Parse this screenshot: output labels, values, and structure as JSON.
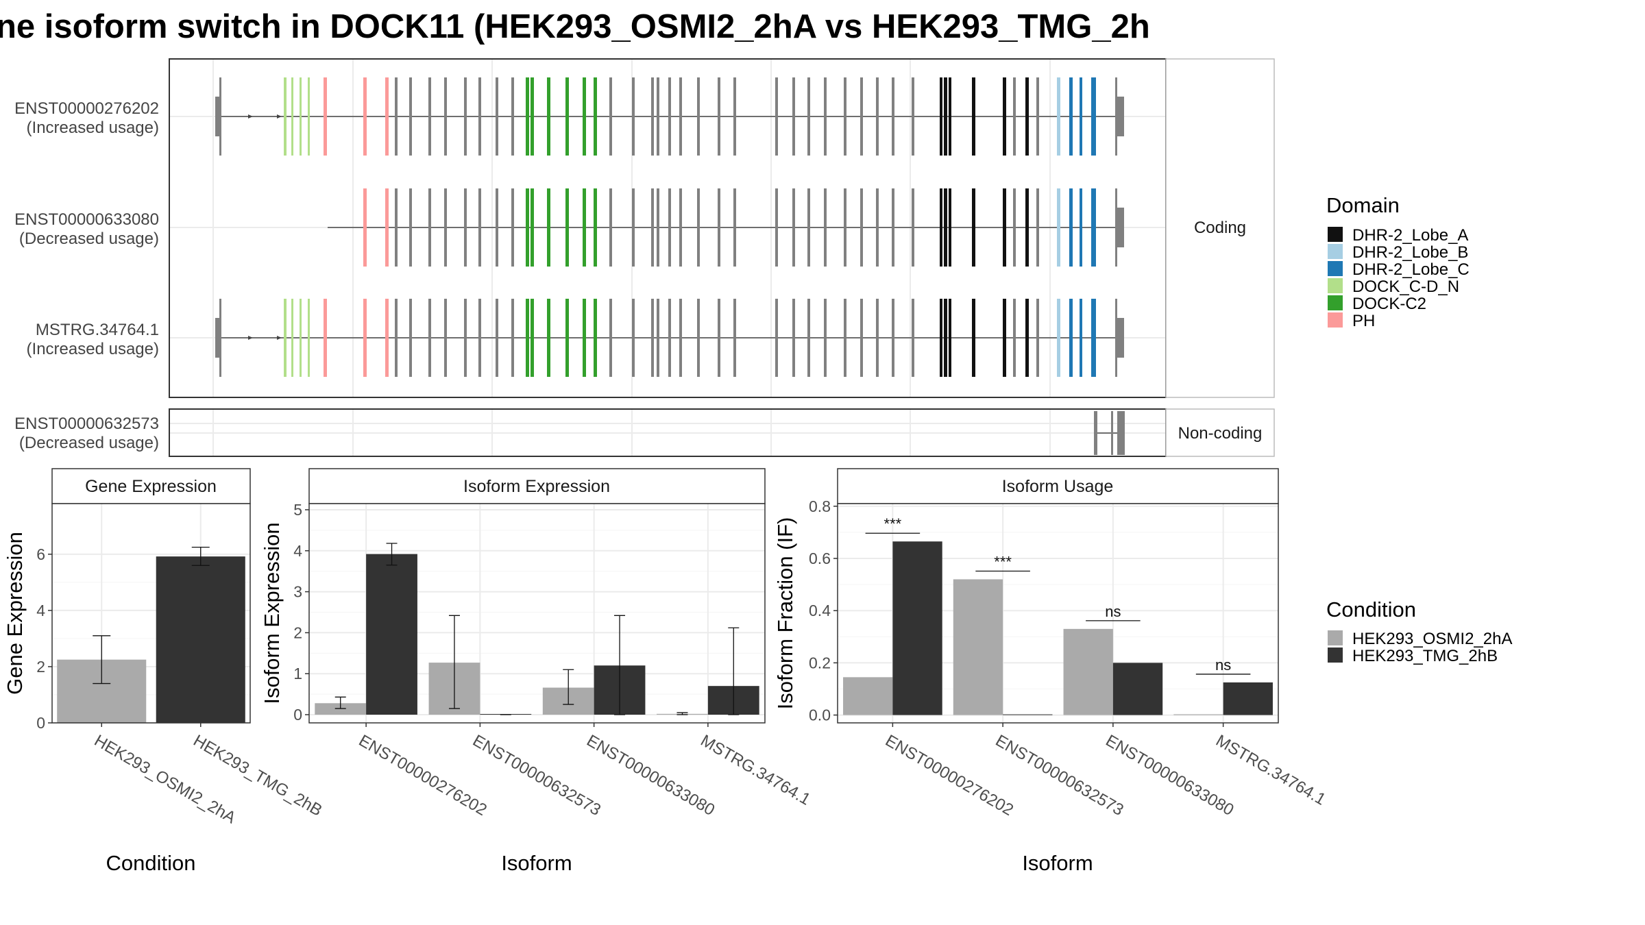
{
  "title": "ne isoform switch in DOCK11 (HEK293_OSMI2_2hA vs HEK293_TMG_2h",
  "colors": {
    "DHR-2_Lobe_A": "#111111",
    "DHR-2_Lobe_B": "#a6cee3",
    "DHR-2_Lobe_C": "#1f78b4",
    "DOCK_C-D_N": "#b2df8a",
    "DOCK-C2": "#33a02c",
    "PH": "#fb9a99",
    "exon": "#808080",
    "HEK293_OSMI2_2hA": "#aaaaaa",
    "HEK293_TMG_2hB": "#333333"
  },
  "chart_data": [
    {
      "type": "transcript_structure",
      "strip_labels": [
        "Coding",
        "Non-coding"
      ],
      "transcripts": [
        {
          "id": "ENST00000276202",
          "usage": "(Increased usage)",
          "group": "Coding"
        },
        {
          "id": "ENST00000633080",
          "usage": "(Decreased usage)",
          "group": "Coding"
        },
        {
          "id": "MSTRG.34764.1",
          "usage": "(Increased usage)",
          "group": "Coding"
        },
        {
          "id": "ENST00000632573",
          "usage": "(Decreased usage)",
          "group": "Non-coding"
        }
      ],
      "legend": {
        "title": "Domain",
        "items": [
          "DHR-2_Lobe_A",
          "DHR-2_Lobe_B",
          "DHR-2_Lobe_C",
          "DOCK_C-D_N",
          "DOCK-C2",
          "PH"
        ]
      }
    },
    {
      "type": "bar",
      "title": "Gene Expression",
      "xlabel": "Condition",
      "ylabel": "Gene Expression",
      "categories": [
        "HEK293_OSMI2_2hA",
        "HEK293_TMG_2hB"
      ],
      "values": [
        2.25,
        5.92
      ],
      "error_low": [
        1.4,
        5.6
      ],
      "error_high": [
        3.1,
        6.25
      ],
      "ylim": [
        0,
        7.8
      ],
      "yticks": [
        0,
        2,
        4,
        6
      ]
    },
    {
      "type": "bar",
      "title": "Isoform Expression",
      "xlabel": "Isoform",
      "ylabel": "Isoform Expression",
      "categories": [
        "ENST00000276202",
        "ENST00000632573",
        "ENST00000633080",
        "MSTRG.34764.1"
      ],
      "series": [
        {
          "name": "HEK293_OSMI2_2hA",
          "values": [
            0.28,
            1.27,
            0.66,
            0.02
          ],
          "err_low": [
            0.15,
            0.15,
            0.25,
            0.0
          ],
          "err_high": [
            0.43,
            2.42,
            1.1,
            0.05
          ]
        },
        {
          "name": "HEK293_TMG_2hB",
          "values": [
            3.92,
            0.0,
            1.2,
            0.7
          ],
          "err_low": [
            3.65,
            0.0,
            0.0,
            0.0
          ],
          "err_high": [
            4.18,
            0.0,
            2.42,
            2.12
          ]
        }
      ],
      "ylim": [
        -0.2,
        5.15
      ],
      "yticks": [
        0,
        1,
        2,
        3,
        4,
        5
      ]
    },
    {
      "type": "bar",
      "title": "Isoform Usage",
      "xlabel": "Isoform",
      "ylabel": "Isoform Fraction (IF)",
      "categories": [
        "ENST00000276202",
        "ENST00000632573",
        "ENST00000633080",
        "MSTRG.34764.1"
      ],
      "series": [
        {
          "name": "HEK293_OSMI2_2hA",
          "values": [
            0.145,
            0.52,
            0.33,
            0.003
          ]
        },
        {
          "name": "HEK293_TMG_2hB",
          "values": [
            0.665,
            0.0,
            0.2,
            0.125
          ]
        }
      ],
      "significance": [
        "***",
        "***",
        "ns",
        "ns"
      ],
      "ylim": [
        -0.03,
        0.81
      ],
      "yticks": [
        "0.0",
        "0.2",
        "0.4",
        "0.6",
        "0.8"
      ]
    }
  ],
  "condition_legend": {
    "title": "Condition",
    "items": [
      "HEK293_OSMI2_2hA",
      "HEK293_TMG_2hB"
    ]
  }
}
